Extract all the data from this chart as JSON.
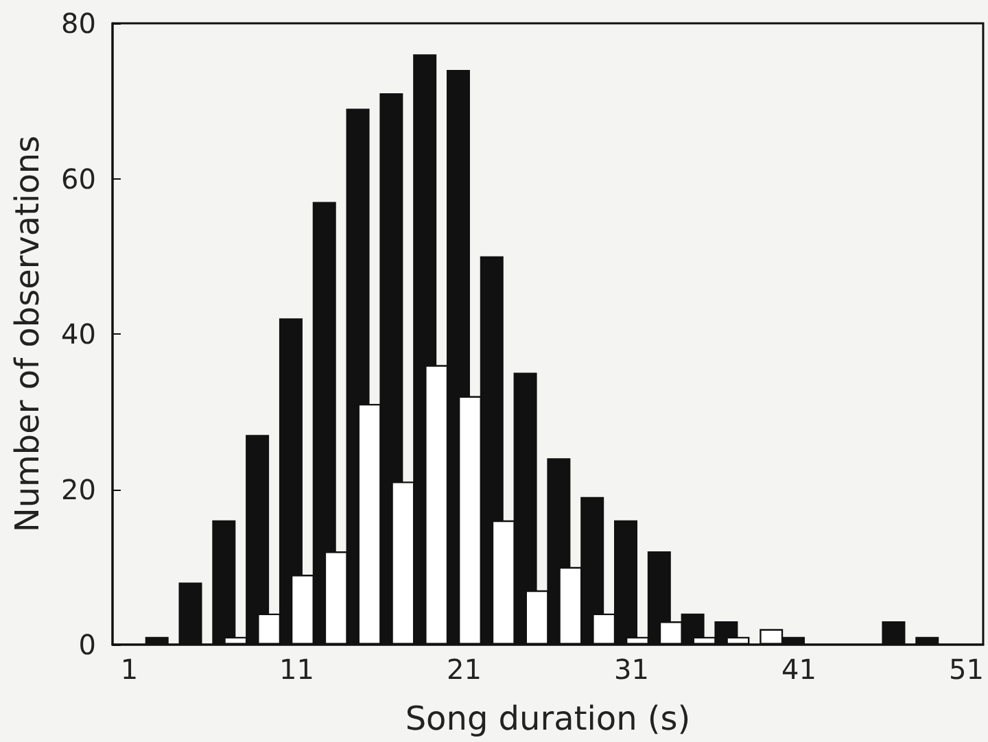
{
  "chart_data": {
    "type": "bar",
    "xlabel": "Song duration (s)",
    "ylabel": "Number of observations",
    "x": [
      3,
      5,
      7,
      9,
      11,
      13,
      15,
      17,
      19,
      21,
      23,
      25,
      27,
      29,
      31,
      33,
      35,
      37,
      39,
      41,
      43,
      45,
      47,
      49
    ],
    "series": [
      {
        "color": "#111111",
        "values": [
          1,
          8,
          16,
          27,
          42,
          57,
          69,
          71,
          76,
          74,
          50,
          35,
          24,
          19,
          16,
          12,
          4,
          3,
          null,
          1,
          0,
          0,
          3,
          1
        ]
      },
      {
        "color": "#ffffff",
        "values": [
          0,
          0,
          1,
          4,
          9,
          12,
          31,
          21,
          36,
          32,
          16,
          7,
          10,
          4,
          1,
          3,
          1,
          1,
          2,
          0,
          0,
          0,
          0,
          0
        ]
      }
    ],
    "xlim": [
      0,
      52
    ],
    "xticks": [
      1,
      11,
      21,
      31,
      41,
      51
    ],
    "ylim": [
      0,
      80
    ],
    "yticks": [
      0,
      20,
      40,
      60,
      80
    ]
  }
}
